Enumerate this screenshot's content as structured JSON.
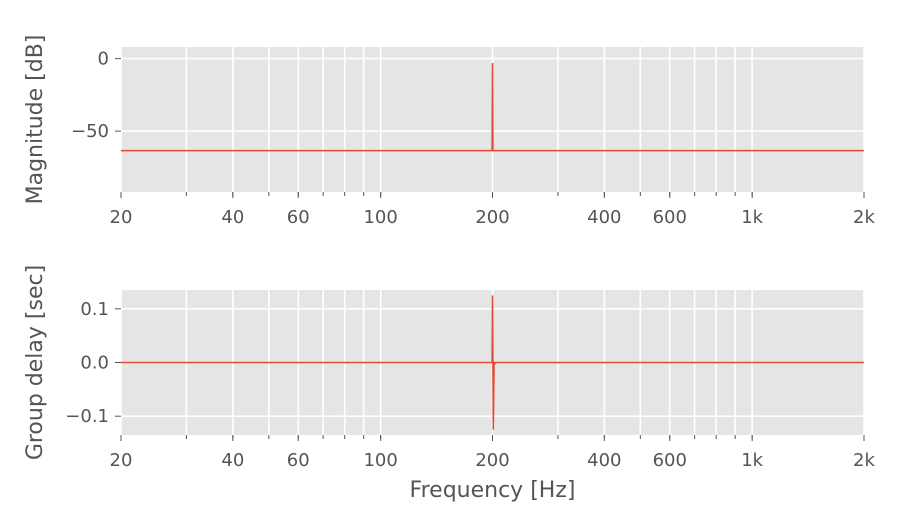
{
  "chart_data": [
    {
      "type": "line",
      "title": "",
      "xlabel": "",
      "ylabel": "Magnitude [dB]",
      "xscale": "log",
      "xlim": [
        20,
        2000
      ],
      "ylim": [
        -92,
        8
      ],
      "grid": true,
      "xticks": [
        20,
        40,
        60,
        100,
        200,
        400,
        600,
        1000,
        2000
      ],
      "xtick_labels": [
        "20",
        "40",
        "60",
        "100",
        "200",
        "400",
        "600",
        "1k",
        "2k"
      ],
      "yticks": [
        0,
        -50
      ],
      "ytick_labels": [
        "0",
        "−50"
      ],
      "series": [
        {
          "x": [
            20,
            199.5,
            200,
            200.5,
            2000
          ],
          "values": [
            -63.5,
            -63.5,
            -3,
            -63.5,
            -63.5
          ]
        }
      ]
    },
    {
      "type": "line",
      "title": "",
      "xlabel": "Frequency [Hz]",
      "ylabel": "Group delay [sec]",
      "xscale": "log",
      "xlim": [
        20,
        2000
      ],
      "ylim": [
        -0.135,
        0.135
      ],
      "grid": true,
      "xticks": [
        20,
        40,
        60,
        100,
        200,
        400,
        600,
        1000,
        2000
      ],
      "xtick_labels": [
        "20",
        "40",
        "60",
        "100",
        "200",
        "400",
        "600",
        "1k",
        "2k"
      ],
      "yticks": [
        0.1,
        0.0,
        -0.1
      ],
      "ytick_labels": [
        "0.1",
        "0.0",
        "−0.1"
      ],
      "series": [
        {
          "x": [
            20,
            199.5,
            200,
            201,
            202,
            203,
            204,
            2000
          ],
          "values": [
            0,
            0,
            0.125,
            -0.125,
            0,
            -0.002,
            0,
            0
          ]
        }
      ]
    }
  ],
  "colors": {
    "line": "#E24A33",
    "panel_background": "#E5E5E5",
    "grid": "#ffffff",
    "text": "#555555"
  }
}
